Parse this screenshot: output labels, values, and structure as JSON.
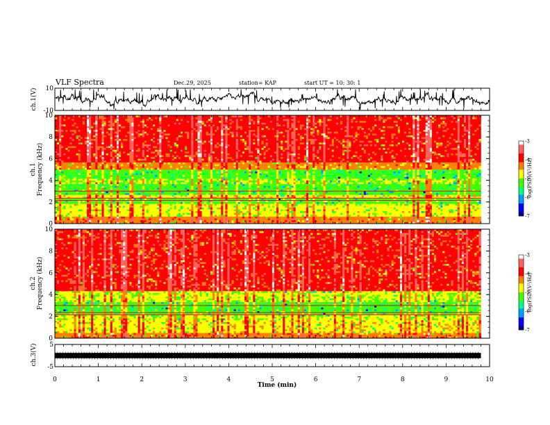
{
  "header": {
    "title": "VLF Spectra",
    "date": "Dec.29, 2025",
    "station": "station= KAP",
    "start": "start  UT  =    10: 30: 1"
  },
  "colors": {
    "spectrum_scale": [
      "#00007f",
      "#0000ff",
      "#00a0ff",
      "#00ff80",
      "#40ff00",
      "#ffff00",
      "#ff8000",
      "#ff0000",
      "#ff6060",
      "#ffffff"
    ],
    "waveform": "#000000"
  },
  "chart_data": [
    {
      "type": "line",
      "name": "ch1-waveform",
      "ylabel": "ch.1(V)",
      "ylim": [
        -10,
        10
      ],
      "yticks": [
        {
          "v": 10,
          "label": "10"
        },
        {
          "v": -10,
          "label": "-10"
        }
      ],
      "xlim": [
        0,
        10
      ],
      "baseline": 0,
      "amplitude": 2.5,
      "series": [
        {
          "x": [
            0,
            10
          ],
          "values": [
            0,
            0
          ]
        }
      ]
    },
    {
      "type": "heatmap",
      "name": "ch1-spectrogram",
      "ylabel": "Frequency (kHz)",
      "ylabel2": "ch.1",
      "ylim": [
        0,
        10
      ],
      "xlim": [
        0,
        10
      ],
      "yticks": [
        0,
        2,
        4,
        6,
        8,
        10
      ],
      "data_xmax": 9.8,
      "bands": [
        {
          "from": 0,
          "to": 0.6,
          "level": -4.3
        },
        {
          "from": 0.6,
          "to": 1.8,
          "level": -4.8
        },
        {
          "from": 1.8,
          "to": 2.3,
          "level": -5.2
        },
        {
          "from": 2.3,
          "to": 2.6,
          "level": -4.7
        },
        {
          "from": 2.6,
          "to": 3.6,
          "level": -5.3
        },
        {
          "from": 3.6,
          "to": 4.2,
          "level": -5.0
        },
        {
          "from": 4.2,
          "to": 5.0,
          "level": -5.3
        },
        {
          "from": 5.0,
          "to": 5.6,
          "level": -4.4
        },
        {
          "from": 5.6,
          "to": 10,
          "level": -3.9
        }
      ],
      "colorbar": {
        "range": [
          -7,
          -3
        ],
        "ticks": [
          -3,
          -4,
          -5,
          -6,
          -7
        ],
        "label": "log(PSD)(V²/Hz)"
      }
    },
    {
      "type": "heatmap",
      "name": "ch2-spectrogram",
      "ylabel": "Frequency (kHz)",
      "ylabel2": "ch.2",
      "ylim": [
        0,
        10
      ],
      "xlim": [
        0,
        10
      ],
      "yticks": [
        0,
        2,
        4,
        6,
        8,
        10
      ],
      "data_xmax": 9.8,
      "bands": [
        {
          "from": 0,
          "to": 0.5,
          "level": -4.3
        },
        {
          "from": 0.5,
          "to": 1.6,
          "level": -4.7
        },
        {
          "from": 1.6,
          "to": 2.2,
          "level": -4.9
        },
        {
          "from": 2.2,
          "to": 3.4,
          "level": -5.3
        },
        {
          "from": 3.4,
          "to": 4.4,
          "level": -4.9
        },
        {
          "from": 4.4,
          "to": 10,
          "level": -3.9
        }
      ],
      "colorbar": {
        "range": [
          -7,
          -3
        ],
        "ticks": [
          -3,
          -4,
          -5,
          -6,
          -7
        ],
        "label": "log(PSD)(V²/Hz)"
      }
    },
    {
      "type": "line",
      "name": "ch3-waveform",
      "ylabel": "ch.3(V)",
      "ylim": [
        -5,
        5
      ],
      "yticks": [
        {
          "v": 5,
          "label": "5"
        },
        {
          "v": -5,
          "label": "-5"
        }
      ],
      "xlim": [
        0,
        9.8
      ],
      "baseline": 0,
      "amplitude": 0.4,
      "series": [
        {
          "x": [
            0,
            9.8
          ],
          "values": [
            0,
            0
          ]
        }
      ]
    }
  ],
  "x_axis": {
    "label": "Time (min)",
    "range": [
      0,
      10
    ],
    "ticks": [
      "0",
      "1",
      "2",
      "3",
      "4",
      "5",
      "6",
      "7",
      "8",
      "9",
      "10"
    ]
  }
}
